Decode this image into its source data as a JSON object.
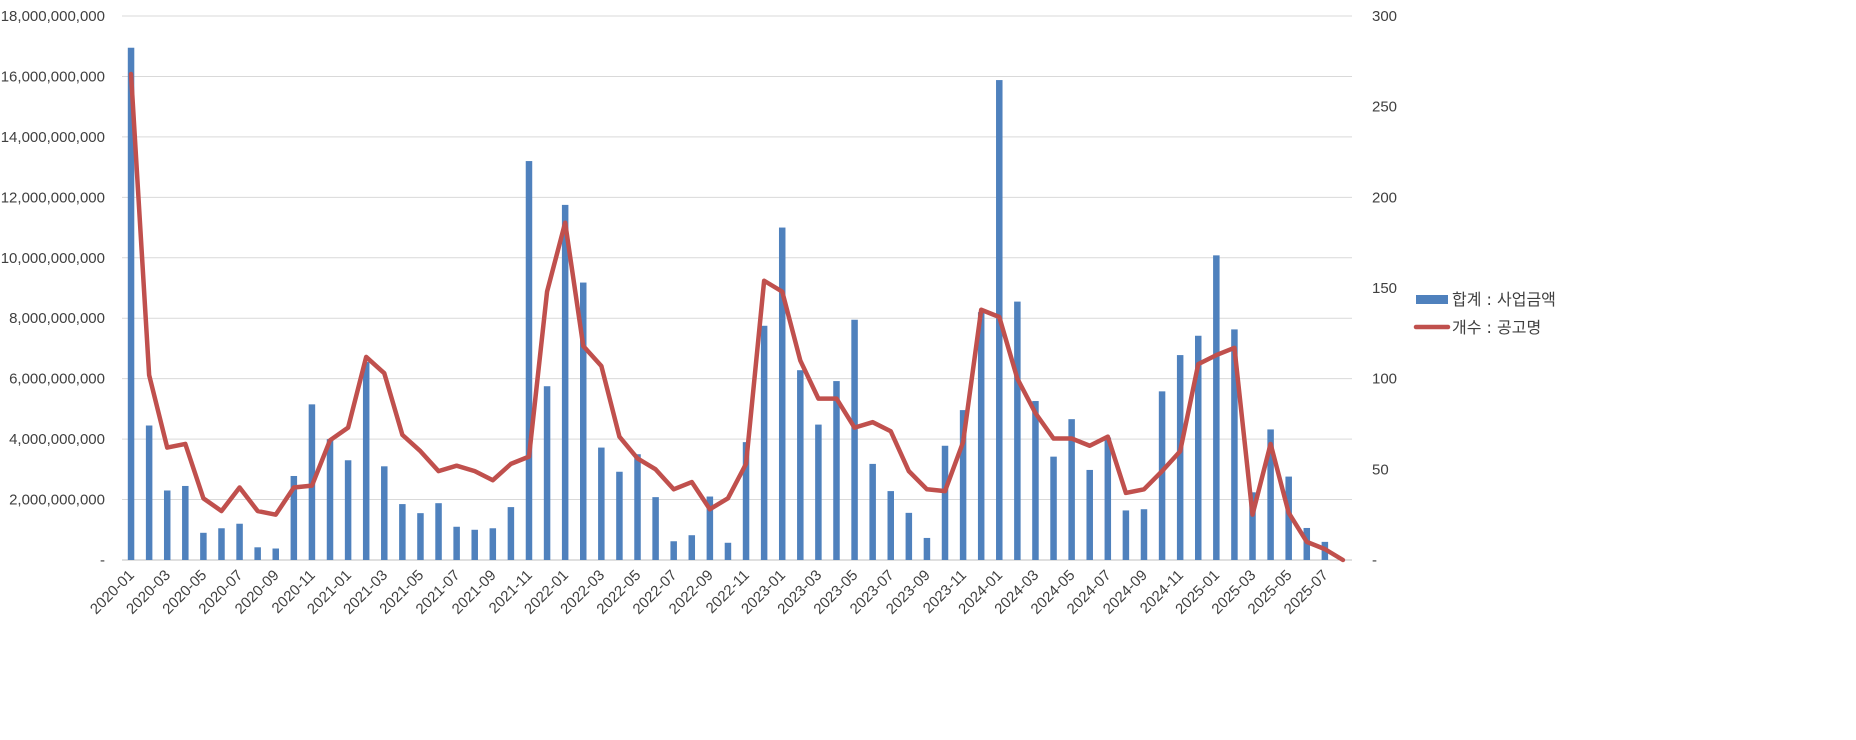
{
  "chart_data": {
    "type": "bar+line",
    "categories": [
      "2020-01",
      "2020-02",
      "2020-03",
      "2020-04",
      "2020-05",
      "2020-06",
      "2020-07",
      "2020-08",
      "2020-09",
      "2020-10",
      "2020-11",
      "2020-12",
      "2021-01",
      "2021-02",
      "2021-03",
      "2021-04",
      "2021-05",
      "2021-06",
      "2021-07",
      "2021-08",
      "2021-09",
      "2021-10",
      "2021-11",
      "2021-12",
      "2022-01",
      "2022-02",
      "2022-03",
      "2022-04",
      "2022-05",
      "2022-06",
      "2022-07",
      "2022-08",
      "2022-09",
      "2022-10",
      "2022-11",
      "2022-12",
      "2023-01",
      "2023-02",
      "2023-03",
      "2023-04",
      "2023-05",
      "2023-06",
      "2023-07",
      "2023-08",
      "2023-09",
      "2023-10",
      "2023-11",
      "2023-12",
      "2024-01",
      "2024-02",
      "2024-03",
      "2024-04",
      "2024-05",
      "2024-06",
      "2024-07",
      "2024-08",
      "2024-09",
      "2024-10",
      "2024-11",
      "2024-12",
      "2025-01",
      "2025-02",
      "2025-03",
      "2025-04",
      "2025-05",
      "2025-06",
      "2025-07",
      "2025-08"
    ],
    "x_tick_labels": [
      "2020-01",
      "2020-03",
      "2020-05",
      "2020-07",
      "2020-09",
      "2020-11",
      "2021-01",
      "2021-03",
      "2021-05",
      "2021-07",
      "2021-09",
      "2021-11",
      "2022-01",
      "2022-03",
      "2022-05",
      "2022-07",
      "2022-09",
      "2022-11",
      "2023-01",
      "2023-03",
      "2023-05",
      "2023-07",
      "2023-09",
      "2023-11",
      "2024-01",
      "2024-03",
      "2024-05",
      "2024-07",
      "2024-09",
      "2024-11",
      "2025-01",
      "2025-03",
      "2025-05",
      "2025-07"
    ],
    "series": [
      {
        "name": "합계 : 사업금액",
        "type": "bar",
        "axis": "left",
        "color": "#4f81bd",
        "values": [
          16950000000,
          4450000000,
          2300000000,
          2450000000,
          900000000,
          1050000000,
          1200000000,
          420000000,
          380000000,
          2780000000,
          5150000000,
          4000000000,
          3300000000,
          6550000000,
          3100000000,
          1850000000,
          1550000000,
          1880000000,
          1100000000,
          1000000000,
          1050000000,
          1750000000,
          13200000000,
          5750000000,
          11750000000,
          9180000000,
          3720000000,
          2920000000,
          3500000000,
          2080000000,
          620000000,
          820000000,
          2100000000,
          570000000,
          3900000000,
          7750000000,
          11000000000,
          6280000000,
          4480000000,
          5920000000,
          7950000000,
          3180000000,
          2280000000,
          1560000000,
          730000000,
          3780000000,
          4960000000,
          8200000000,
          15880000000,
          8550000000,
          5260000000,
          3420000000,
          4660000000,
          2980000000,
          4050000000,
          1640000000,
          1680000000,
          5580000000,
          6780000000,
          7420000000,
          10080000000,
          7630000000,
          2240000000,
          4320000000,
          2760000000,
          1060000000,
          600000000,
          0
        ]
      },
      {
        "name": "개수 : 공고명",
        "type": "line",
        "axis": "right",
        "color": "#c0504d",
        "values": [
          268,
          102,
          62,
          64,
          34,
          27,
          40,
          27,
          25,
          40,
          41,
          66,
          73,
          112,
          103,
          69,
          60,
          49,
          52,
          49,
          44,
          53,
          57,
          148,
          186,
          118,
          107,
          68,
          56,
          50,
          39,
          43,
          28,
          34,
          53,
          154,
          148,
          110,
          89,
          89,
          73,
          76,
          71,
          49,
          39,
          38,
          65,
          138,
          134,
          100,
          81,
          67,
          67,
          63,
          68,
          37,
          39,
          49,
          60,
          108,
          113,
          117,
          25,
          64,
          26,
          10,
          6,
          0
        ]
      }
    ],
    "y_left": {
      "min": 0,
      "max": 18000000000,
      "step": 2000000000,
      "tick_labels": [
        "-",
        "2,000,000,000",
        "4,000,000,000",
        "6,000,000,000",
        "8,000,000,000",
        "10,000,000,000",
        "12,000,000,000",
        "14,000,000,000",
        "16,000,000,000",
        "18,000,000,000"
      ]
    },
    "y_right": {
      "min": 0,
      "max": 300,
      "step": 50,
      "tick_labels": [
        "-",
        "50",
        "100",
        "150",
        "200",
        "250",
        "300"
      ]
    },
    "grid": true,
    "legend": {
      "placement": "right",
      "entries": [
        "합계 : 사업금액",
        "개수 : 공고명"
      ]
    }
  }
}
